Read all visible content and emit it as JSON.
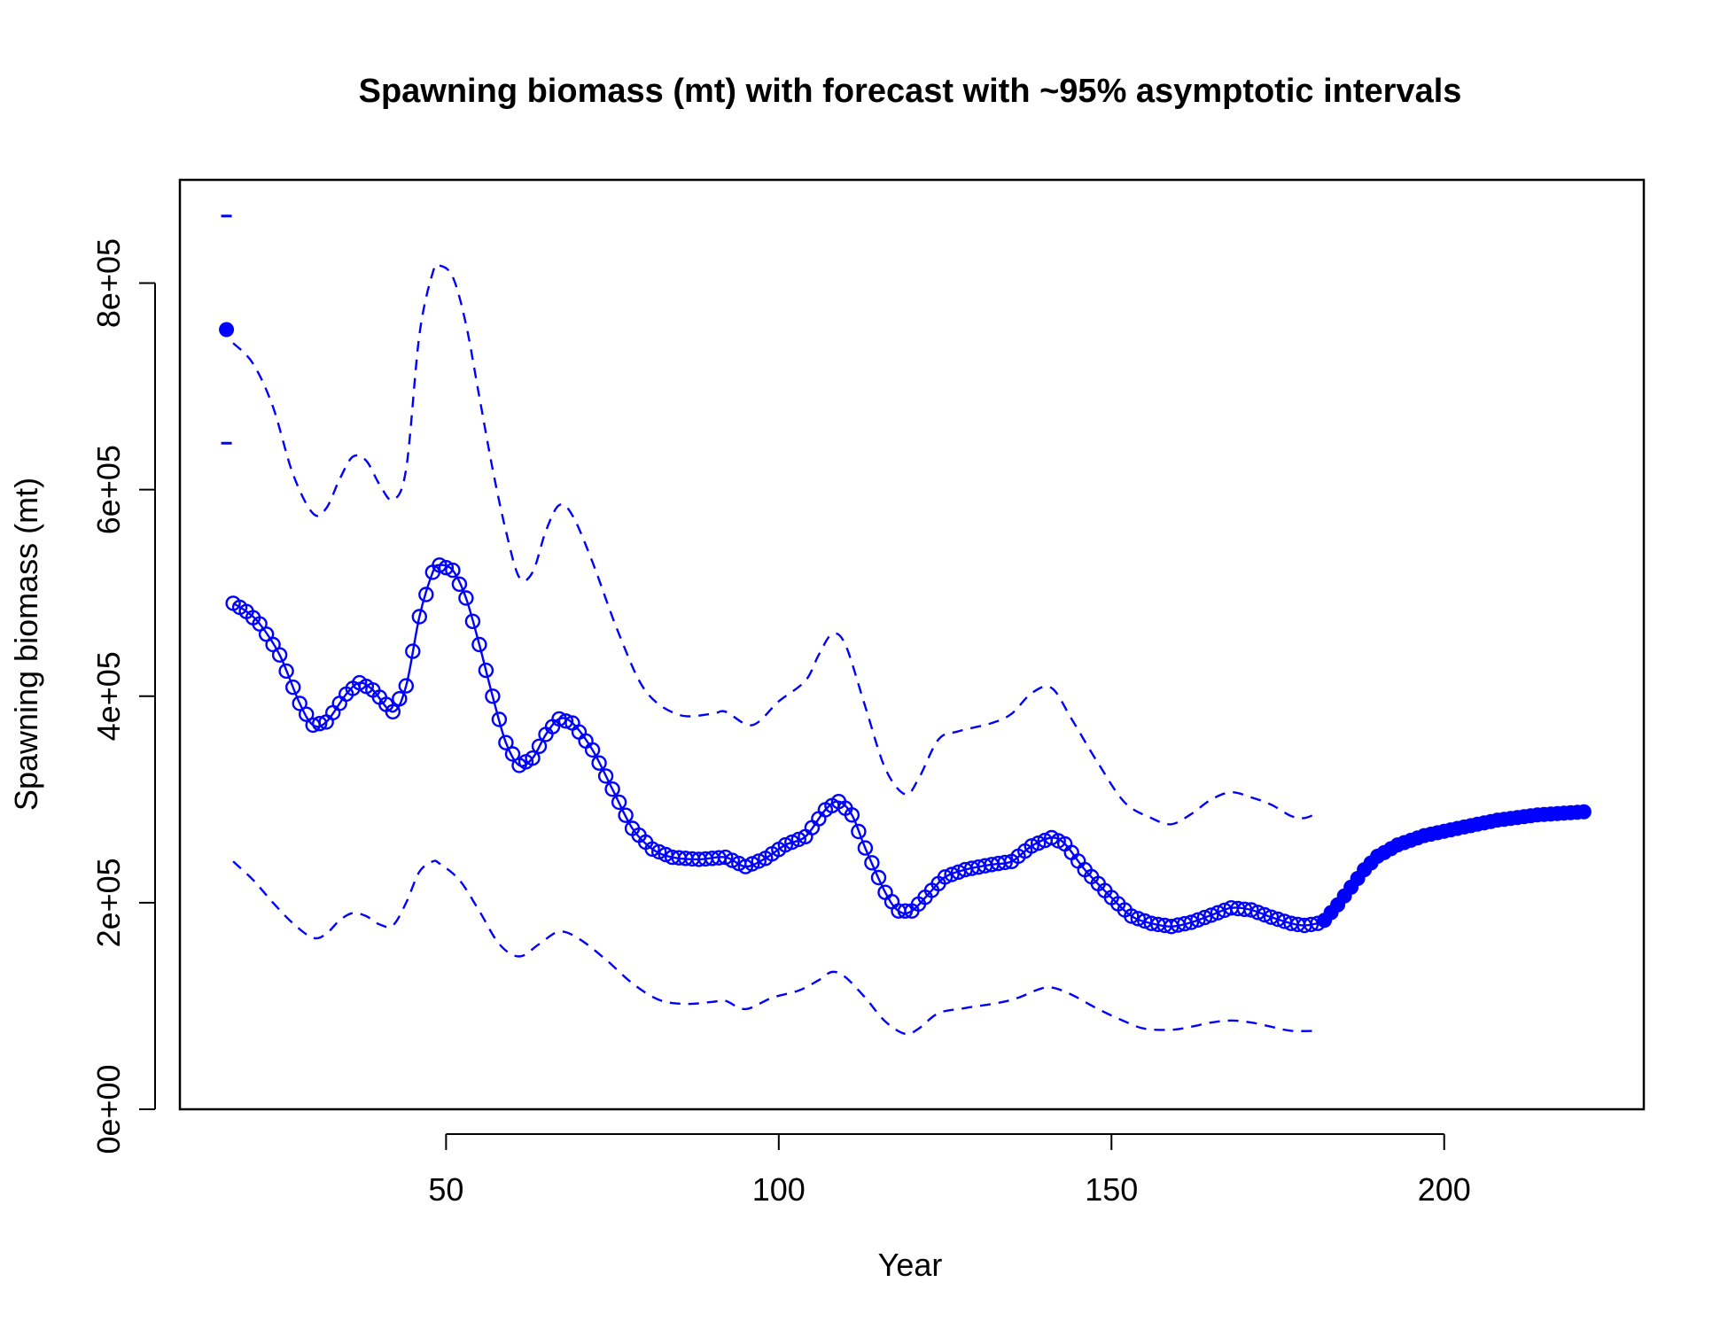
{
  "chart_data": {
    "type": "line",
    "title": "Spawning biomass (mt) with forecast with ~95% asymptotic intervals",
    "xlabel": "Year",
    "ylabel": "Spawning biomass (mt)",
    "xlim": [
      10,
      230
    ],
    "ylim": [
      0,
      900000
    ],
    "x_ticks": [
      50,
      100,
      150,
      200
    ],
    "x_tick_labels": [
      "50",
      "100",
      "150",
      "200"
    ],
    "y_ticks": [
      0,
      200000,
      400000,
      600000,
      800000
    ],
    "y_tick_labels": [
      "0e+00",
      "2e+05",
      "4e+05",
      "6e+05",
      "8e+05"
    ],
    "color": "#0000ff",
    "grid": false,
    "legend": "none",
    "virgin": {
      "x": 17,
      "value": 755000,
      "upper": 865000,
      "lower": 645000
    },
    "series": [
      {
        "role": "estimate-main-period",
        "style": "line-with-open-circles",
        "start_year": 18,
        "end_year": 181,
        "knots": [
          [
            18,
            490000
          ],
          [
            20,
            482000
          ],
          [
            22,
            470000
          ],
          [
            25,
            440000
          ],
          [
            28,
            393000
          ],
          [
            30,
            372000
          ],
          [
            32,
            375000
          ],
          [
            35,
            402000
          ],
          [
            37,
            413000
          ],
          [
            39,
            406000
          ],
          [
            42,
            385000
          ],
          [
            44,
            410000
          ],
          [
            46,
            477000
          ],
          [
            48,
            520000
          ],
          [
            49,
            527000
          ],
          [
            51,
            522000
          ],
          [
            53,
            495000
          ],
          [
            55,
            450000
          ],
          [
            57,
            400000
          ],
          [
            59,
            355000
          ],
          [
            61,
            333000
          ],
          [
            63,
            340000
          ],
          [
            65,
            363000
          ],
          [
            67,
            378000
          ],
          [
            69,
            374000
          ],
          [
            72,
            348000
          ],
          [
            75,
            310000
          ],
          [
            78,
            272000
          ],
          [
            81,
            252000
          ],
          [
            84,
            244000
          ],
          [
            88,
            242000
          ],
          [
            92,
            244000
          ],
          [
            95,
            235000
          ],
          [
            98,
            243000
          ],
          [
            101,
            256000
          ],
          [
            104,
            264000
          ],
          [
            107,
            290000
          ],
          [
            109,
            298000
          ],
          [
            111,
            285000
          ],
          [
            113,
            253000
          ],
          [
            116,
            210000
          ],
          [
            118,
            192000
          ],
          [
            120,
            192000
          ],
          [
            123,
            212000
          ],
          [
            125,
            225000
          ],
          [
            128,
            232000
          ],
          [
            132,
            237000
          ],
          [
            135,
            240000
          ],
          [
            138,
            255000
          ],
          [
            141,
            263000
          ],
          [
            143,
            257000
          ],
          [
            146,
            232000
          ],
          [
            150,
            205000
          ],
          [
            153,
            187000
          ],
          [
            156,
            180000
          ],
          [
            159,
            177000
          ],
          [
            162,
            181000
          ],
          [
            165,
            188000
          ],
          [
            168,
            195000
          ],
          [
            171,
            193000
          ],
          [
            174,
            186000
          ],
          [
            177,
            180000
          ],
          [
            179,
            178000
          ],
          [
            181,
            180000
          ]
        ]
      },
      {
        "role": "forecast",
        "style": "filled-circles",
        "start_year": 182,
        "end_year": 221,
        "knots": [
          [
            182,
            183000
          ],
          [
            184,
            198000
          ],
          [
            186,
            215000
          ],
          [
            188,
            232000
          ],
          [
            190,
            245000
          ],
          [
            193,
            256000
          ],
          [
            197,
            265000
          ],
          [
            202,
            272000
          ],
          [
            208,
            280000
          ],
          [
            214,
            285000
          ],
          [
            221,
            288000
          ]
        ]
      },
      {
        "role": "upper-95",
        "style": "dashed",
        "knots": [
          [
            18,
            742000
          ],
          [
            21,
            722000
          ],
          [
            24,
            680000
          ],
          [
            27,
            615000
          ],
          [
            30,
            577000
          ],
          [
            32,
            582000
          ],
          [
            34,
            610000
          ],
          [
            36,
            632000
          ],
          [
            38,
            628000
          ],
          [
            40,
            605000
          ],
          [
            42,
            590000
          ],
          [
            44,
            620000
          ],
          [
            46,
            750000
          ],
          [
            48,
            810000
          ],
          [
            49,
            817000
          ],
          [
            51,
            806000
          ],
          [
            53,
            760000
          ],
          [
            55,
            690000
          ],
          [
            57,
            620000
          ],
          [
            59,
            560000
          ],
          [
            61,
            515000
          ],
          [
            63,
            520000
          ],
          [
            65,
            560000
          ],
          [
            67,
            585000
          ],
          [
            69,
            575000
          ],
          [
            72,
            530000
          ],
          [
            76,
            460000
          ],
          [
            80,
            405000
          ],
          [
            85,
            382000
          ],
          [
            90,
            383000
          ],
          [
            92,
            385000
          ],
          [
            96,
            372000
          ],
          [
            100,
            395000
          ],
          [
            104,
            415000
          ],
          [
            106,
            440000
          ],
          [
            108,
            460000
          ],
          [
            110,
            450000
          ],
          [
            113,
            390000
          ],
          [
            116,
            330000
          ],
          [
            119,
            305000
          ],
          [
            121,
            320000
          ],
          [
            124,
            358000
          ],
          [
            127,
            366000
          ],
          [
            132,
            374000
          ],
          [
            135,
            383000
          ],
          [
            138,
            403000
          ],
          [
            141,
            408000
          ],
          [
            144,
            378000
          ],
          [
            148,
            335000
          ],
          [
            152,
            297000
          ],
          [
            156,
            282000
          ],
          [
            159,
            276000
          ],
          [
            162,
            286000
          ],
          [
            165,
            300000
          ],
          [
            168,
            307000
          ],
          [
            171,
            302000
          ],
          [
            174,
            295000
          ],
          [
            177,
            284000
          ],
          [
            179,
            282000
          ],
          [
            181,
            287000
          ]
        ]
      },
      {
        "role": "lower-95",
        "style": "dashed",
        "knots": [
          [
            18,
            240000
          ],
          [
            21,
            222000
          ],
          [
            24,
            200000
          ],
          [
            27,
            180000
          ],
          [
            30,
            166000
          ],
          [
            32,
            170000
          ],
          [
            34,
            183000
          ],
          [
            36,
            190000
          ],
          [
            38,
            187000
          ],
          [
            40,
            179000
          ],
          [
            42,
            178000
          ],
          [
            44,
            200000
          ],
          [
            46,
            230000
          ],
          [
            48,
            240000
          ],
          [
            49,
            238000
          ],
          [
            52,
            222000
          ],
          [
            55,
            192000
          ],
          [
            58,
            160000
          ],
          [
            61,
            148000
          ],
          [
            64,
            160000
          ],
          [
            67,
            172000
          ],
          [
            70,
            165000
          ],
          [
            74,
            145000
          ],
          [
            78,
            122000
          ],
          [
            82,
            106000
          ],
          [
            86,
            102000
          ],
          [
            90,
            104000
          ],
          [
            92,
            105000
          ],
          [
            95,
            97000
          ],
          [
            99,
            108000
          ],
          [
            103,
            115000
          ],
          [
            106,
            125000
          ],
          [
            108,
            133000
          ],
          [
            110,
            128000
          ],
          [
            113,
            108000
          ],
          [
            116,
            85000
          ],
          [
            119,
            73000
          ],
          [
            121,
            78000
          ],
          [
            124,
            93000
          ],
          [
            128,
            98000
          ],
          [
            133,
            103000
          ],
          [
            136,
            108000
          ],
          [
            139,
            116000
          ],
          [
            141,
            118000
          ],
          [
            144,
            111000
          ],
          [
            148,
            97000
          ],
          [
            152,
            85000
          ],
          [
            155,
            78000
          ],
          [
            159,
            77000
          ],
          [
            162,
            80000
          ],
          [
            165,
            84000
          ],
          [
            168,
            86000
          ],
          [
            171,
            84000
          ],
          [
            174,
            80000
          ],
          [
            177,
            76000
          ],
          [
            181,
            76000
          ]
        ]
      }
    ]
  }
}
